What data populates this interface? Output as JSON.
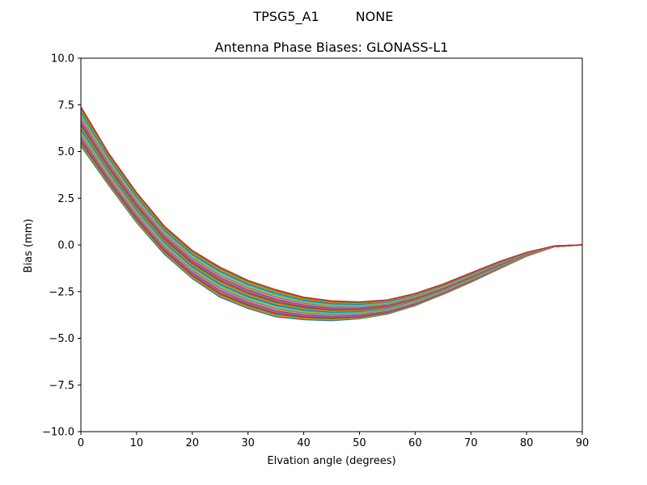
{
  "figure": {
    "suptitle_left": "TPSG5_A1",
    "suptitle_right": "NONE"
  },
  "chart_data": {
    "type": "line",
    "title": "Antenna Phase Biases: GLONASS-L1",
    "xlabel": "Elvation angle (degrees)",
    "ylabel": "Bias (mm)",
    "xlim": [
      0,
      90
    ],
    "ylim": [
      -10,
      10
    ],
    "xticks": [
      0,
      10,
      20,
      30,
      40,
      50,
      60,
      70,
      80,
      90
    ],
    "xtick_labels": [
      "0",
      "10",
      "20",
      "30",
      "40",
      "50",
      "60",
      "70",
      "80",
      "90"
    ],
    "yticks": [
      -10,
      -7.5,
      -5,
      -2.5,
      0,
      2.5,
      5,
      7.5,
      10
    ],
    "ytick_labels": [
      "−10.0",
      "−7.5",
      "−5.0",
      "−2.5",
      "0.0",
      "2.5",
      "5.0",
      "7.5",
      "10.0"
    ],
    "grid": false,
    "legend": "none",
    "x": [
      0,
      5,
      10,
      15,
      20,
      25,
      30,
      35,
      40,
      45,
      50,
      55,
      60,
      65,
      70,
      75,
      80,
      85,
      90
    ],
    "envelope_upper": [
      7.4,
      4.9,
      2.8,
      1.0,
      -0.3,
      -1.2,
      -1.9,
      -2.4,
      -2.8,
      -3.0,
      -3.05,
      -2.95,
      -2.6,
      -2.1,
      -1.5,
      -0.9,
      -0.4,
      -0.05,
      0.0
    ],
    "envelope_lower": [
      5.3,
      3.2,
      1.2,
      -0.5,
      -1.8,
      -2.8,
      -3.4,
      -3.85,
      -4.0,
      -4.05,
      -3.95,
      -3.7,
      -3.25,
      -2.65,
      -2.0,
      -1.3,
      -0.6,
      -0.1,
      0.0
    ],
    "series_count": 24,
    "colors": [
      "#1f77b4",
      "#ff7f0e",
      "#2ca02c",
      "#d62728",
      "#9467bd",
      "#8c564b",
      "#e377c2",
      "#7f7f7f",
      "#bcbd22",
      "#17becf"
    ]
  }
}
